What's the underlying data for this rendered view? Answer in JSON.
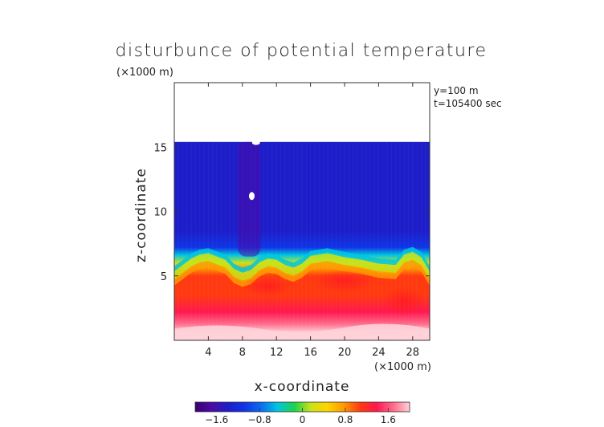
{
  "chart_data": {
    "type": "heatmap",
    "title": "disturbunce of potential temperature",
    "xlabel": "x-coordinate",
    "ylabel": "z-coordinate",
    "x_unit_label": "(×1000 m)",
    "z_unit_label": "(×1000 m)",
    "info_lines": [
      "y=100 m",
      "t=105400 sec"
    ],
    "xlim": [
      0,
      30
    ],
    "ylim": [
      0,
      20
    ],
    "x_ticks": [
      4,
      8,
      12,
      16,
      20,
      24,
      28
    ],
    "y_ticks": [
      5,
      10,
      15
    ],
    "colorbar": {
      "range": [
        -2.0,
        2.0
      ],
      "ticks": [
        -1.6,
        -0.8,
        0,
        0.8,
        1.6
      ],
      "tick_labels": [
        "−1.6",
        "−0.8",
        "0",
        "0.8",
        "1.6"
      ],
      "colors": [
        "#3a0070",
        "#4b0aa8",
        "#1d1ec9",
        "#1035e6",
        "#0a6cf2",
        "#00c6e0",
        "#1cd24a",
        "#c8e21a",
        "#ffd400",
        "#ff9a00",
        "#ff3a10",
        "#ff1850",
        "#ff6a8a",
        "#ffd0d8"
      ]
    },
    "field_regions": [
      {
        "name": "upper stable layer",
        "z_range": [
          6.5,
          15.4
        ],
        "value": -1.2
      },
      {
        "name": "cold plume",
        "x_center": 8.8,
        "z_range": [
          6.5,
          15.4
        ],
        "value": -1.45
      },
      {
        "name": "transition layer",
        "z_range": [
          5.0,
          6.8
        ],
        "value": 0.0
      },
      {
        "name": "warm boundary layer",
        "z_range": [
          1.2,
          5.0
        ],
        "value": 1.3
      },
      {
        "name": "bottom layer",
        "z_range": [
          0,
          1.2
        ],
        "value": 1.9
      }
    ],
    "model_top_z": 15.4,
    "interface_z": [
      [
        0,
        5.0
      ],
      [
        1,
        5.5
      ],
      [
        2,
        6.0
      ],
      [
        3,
        6.3
      ],
      [
        4,
        6.4
      ],
      [
        6,
        5.9
      ],
      [
        7,
        5.2
      ],
      [
        8,
        4.9
      ],
      [
        9,
        5.1
      ],
      [
        10,
        5.7
      ],
      [
        11,
        6.0
      ],
      [
        12,
        5.9
      ],
      [
        13,
        5.5
      ],
      [
        14,
        5.3
      ],
      [
        15,
        5.6
      ],
      [
        16,
        6.2
      ],
      [
        18,
        6.4
      ],
      [
        20,
        6.1
      ],
      [
        22,
        5.9
      ],
      [
        24,
        5.6
      ],
      [
        26,
        5.5
      ],
      [
        27,
        6.3
      ],
      [
        28,
        6.5
      ],
      [
        29,
        6.1
      ],
      [
        30,
        5.0
      ]
    ]
  }
}
